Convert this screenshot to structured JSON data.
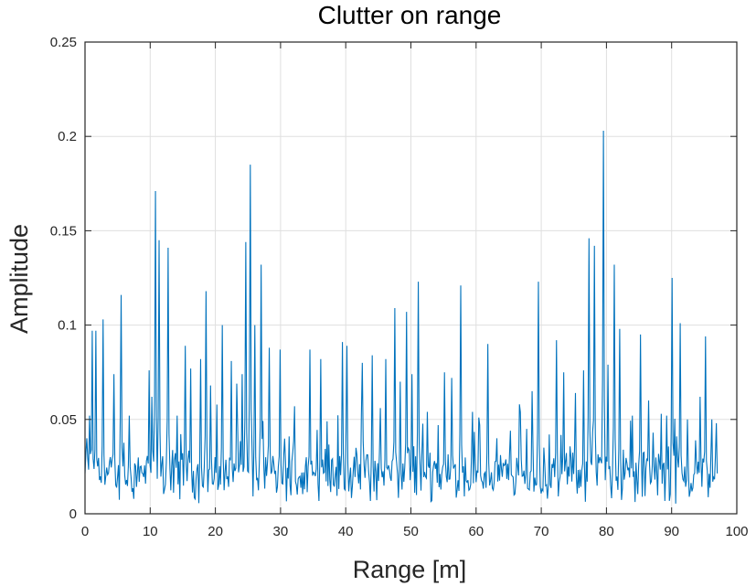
{
  "chart_data": {
    "type": "line",
    "title": "Clutter on range",
    "xlabel": "Range [m]",
    "ylabel": "Amplitude",
    "xlim": [
      0,
      100
    ],
    "ylim": [
      0,
      0.25
    ],
    "xticks": [
      0,
      10,
      20,
      30,
      40,
      50,
      60,
      70,
      80,
      90,
      100
    ],
    "xtick_labels": [
      "0",
      "10",
      "20",
      "30",
      "40",
      "50",
      "60",
      "70",
      "80",
      "90",
      "100"
    ],
    "yticks": [
      0,
      0.05,
      0.1,
      0.15,
      0.2,
      0.25
    ],
    "ytick_labels": [
      "0",
      "0.05",
      "0.1",
      "0.15",
      "0.2",
      "0.25"
    ],
    "grid": true,
    "line_color": "#0072bd",
    "x_start": 0,
    "x_end": 97,
    "baseline_level": 0.02,
    "series": [
      {
        "peaks": [
          [
            0.3,
            0.04
          ],
          [
            0.7,
            0.052
          ],
          [
            1.1,
            0.097
          ],
          [
            1.6,
            0.097
          ],
          [
            2.8,
            0.103
          ],
          [
            4.5,
            0.074
          ],
          [
            5.5,
            0.116
          ],
          [
            6.8,
            0.052
          ],
          [
            9.8,
            0.076
          ],
          [
            10.3,
            0.062
          ],
          [
            10.8,
            0.171
          ],
          [
            11.3,
            0.145
          ],
          [
            12.8,
            0.141
          ],
          [
            14.2,
            0.052
          ],
          [
            15.4,
            0.089
          ],
          [
            16.2,
            0.077
          ],
          [
            17.8,
            0.082
          ],
          [
            18.5,
            0.118
          ],
          [
            19.2,
            0.068
          ],
          [
            21.0,
            0.1
          ],
          [
            22.5,
            0.081
          ],
          [
            23.3,
            0.069
          ],
          [
            24.1,
            0.074
          ],
          [
            24.7,
            0.144
          ],
          [
            25.4,
            0.185
          ],
          [
            26.1,
            0.1
          ],
          [
            27.0,
            0.132
          ],
          [
            28.3,
            0.088
          ],
          [
            30.0,
            0.087
          ],
          [
            32.2,
            0.057
          ],
          [
            34.5,
            0.087
          ],
          [
            36.2,
            0.082
          ],
          [
            37.2,
            0.049
          ],
          [
            39.5,
            0.091
          ],
          [
            40.2,
            0.089
          ],
          [
            42.5,
            0.08
          ],
          [
            44.1,
            0.084
          ],
          [
            45.3,
            0.056
          ],
          [
            46.2,
            0.082
          ],
          [
            47.5,
            0.109
          ],
          [
            48.3,
            0.07
          ],
          [
            49.4,
            0.107
          ],
          [
            50.2,
            0.074
          ],
          [
            51.2,
            0.123
          ],
          [
            52.5,
            0.054
          ],
          [
            54.2,
            0.047
          ],
          [
            55.1,
            0.075
          ],
          [
            56.3,
            0.072
          ],
          [
            57.6,
            0.121
          ],
          [
            59.5,
            0.054
          ],
          [
            60.5,
            0.047
          ],
          [
            61.8,
            0.09
          ],
          [
            63.2,
            0.04
          ],
          [
            65.3,
            0.044
          ],
          [
            66.6,
            0.058
          ],
          [
            67.8,
            0.045
          ],
          [
            68.6,
            0.065
          ],
          [
            69.5,
            0.123
          ],
          [
            71.2,
            0.042
          ],
          [
            72.3,
            0.092
          ],
          [
            73.5,
            0.075
          ],
          [
            75.2,
            0.064
          ],
          [
            76.5,
            0.076
          ],
          [
            77.3,
            0.146
          ],
          [
            78.2,
            0.142
          ],
          [
            79.6,
            0.203
          ],
          [
            80.3,
            0.079
          ],
          [
            81.2,
            0.132
          ],
          [
            82.1,
            0.098
          ],
          [
            84.0,
            0.052
          ],
          [
            85.2,
            0.095
          ],
          [
            86.4,
            0.06
          ],
          [
            87.2,
            0.043
          ],
          [
            88.4,
            0.053
          ],
          [
            89.2,
            0.052
          ],
          [
            90.1,
            0.125
          ],
          [
            91.3,
            0.101
          ],
          [
            92.4,
            0.05
          ],
          [
            94.3,
            0.062
          ],
          [
            95.2,
            0.094
          ],
          [
            96.1,
            0.05
          ],
          [
            96.8,
            0.048
          ]
        ]
      }
    ]
  }
}
